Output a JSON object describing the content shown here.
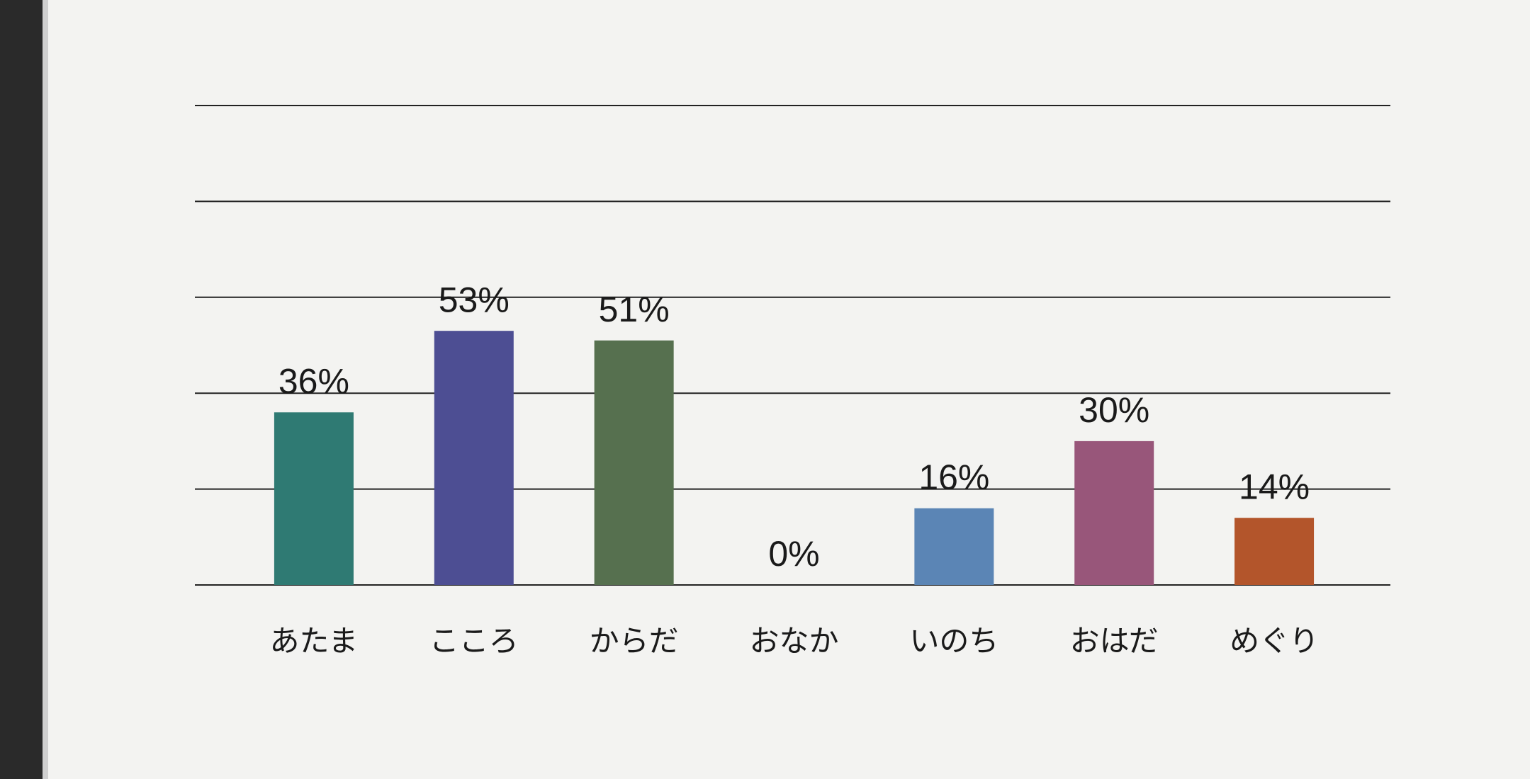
{
  "chart_data": {
    "type": "bar",
    "categories": [
      "あたま",
      "こころ",
      "からだ",
      "おなか",
      "いのち",
      "おはだ",
      "めぐり"
    ],
    "values": [
      36,
      53,
      51,
      0,
      16,
      30,
      14
    ],
    "value_labels": [
      "36%",
      "53%",
      "51%",
      "0%",
      "16%",
      "30%",
      "14%"
    ],
    "colors": [
      "#2f7a73",
      "#4d4e93",
      "#56704f",
      "#888888",
      "#5b85b5",
      "#98567a",
      "#b3552b"
    ],
    "ylim": [
      0,
      100
    ],
    "yticks": [
      0,
      20,
      40,
      60,
      80,
      100
    ],
    "grid": true
  }
}
